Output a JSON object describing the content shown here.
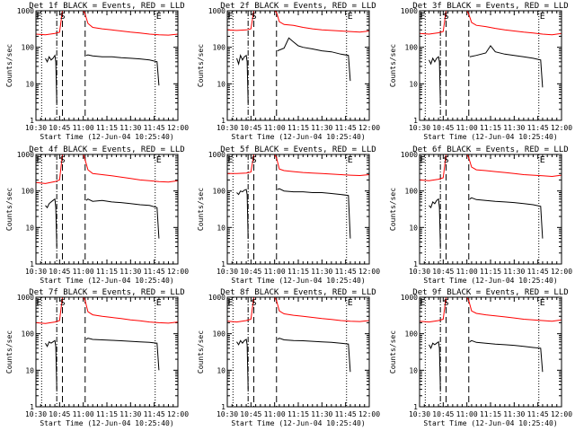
{
  "chart_data": {
    "type": "line",
    "layout": "3x3 grid",
    "time_ticks": [
      "10:30",
      "10:45",
      "11:00",
      "11:15",
      "11:30",
      "11:45",
      "12:00"
    ],
    "time_tick_hours": [
      10.5,
      10.75,
      11.0,
      11.25,
      11.5,
      11.75,
      12.0
    ],
    "xlim": [
      10.5,
      12.0
    ],
    "ylim": [
      1,
      1000
    ],
    "yscale": "log",
    "y_ticks": [
      "1",
      "10",
      "100",
      "1000"
    ],
    "y_tick_values": [
      1,
      10,
      100,
      1000
    ],
    "xlabel": "Start Time (12-Jun-04 10:25:40)",
    "ylabel": "Counts/sec",
    "marker_labels": {
      "start": "S",
      "end": "E"
    },
    "series_colors": {
      "events": "#000000",
      "lld": "#ff0000"
    },
    "panels": [
      {
        "title": "Det 1f BLACK = Events, RED = LLD",
        "markers": {
          "e1_hour": 10.56,
          "s_hour": 10.8,
          "e2_hour": 11.76
        },
        "dashdot_hour": 10.72,
        "dashed_hours": [
          10.78,
          11.02
        ],
        "events": {
          "x": [
            10.6,
            10.62,
            10.64,
            10.66,
            10.68,
            10.7,
            10.71,
            10.72,
            11.03,
            11.05,
            11.1,
            11.2,
            11.3,
            11.4,
            11.5,
            11.6,
            11.7,
            11.78,
            11.8
          ],
          "y": [
            50,
            40,
            55,
            45,
            50,
            60,
            40,
            3,
            60,
            62,
            58,
            55,
            55,
            52,
            50,
            48,
            45,
            40,
            9
          ]
        },
        "lld": {
          "x": [
            10.5,
            10.6,
            10.7,
            10.75,
            10.78,
            10.8,
            10.85,
            10.95,
            11.0,
            11.02,
            11.05,
            11.1,
            11.2,
            11.3,
            11.4,
            11.5,
            11.6,
            11.7,
            11.8,
            11.9,
            12.0
          ],
          "y": [
            230,
            220,
            240,
            260,
            1000,
            1000,
            1000,
            1000,
            1000,
            800,
            450,
            350,
            320,
            300,
            280,
            260,
            245,
            230,
            220,
            215,
            230
          ]
        }
      },
      {
        "title": "Det 2f BLACK = Events, RED = LLD",
        "markers": {
          "e1_hour": 10.56,
          "s_hour": 10.8,
          "e2_hour": 11.76
        },
        "dashdot_hour": 10.72,
        "dashed_hours": [
          10.78,
          11.02
        ],
        "events": {
          "x": [
            10.6,
            10.62,
            10.64,
            10.66,
            10.68,
            10.7,
            10.71,
            10.72,
            11.03,
            11.1,
            11.15,
            11.2,
            11.25,
            11.3,
            11.4,
            11.5,
            11.6,
            11.7,
            11.78,
            11.8
          ],
          "y": [
            50,
            35,
            60,
            45,
            55,
            60,
            40,
            3,
            80,
            95,
            180,
            140,
            110,
            100,
            90,
            80,
            75,
            65,
            60,
            12
          ]
        },
        "lld": {
          "x": [
            10.5,
            10.6,
            10.7,
            10.75,
            10.78,
            10.8,
            10.85,
            10.95,
            11.0,
            11.02,
            11.05,
            11.1,
            11.2,
            11.3,
            11.4,
            11.5,
            11.6,
            11.7,
            11.8,
            11.9,
            12.0
          ],
          "y": [
            300,
            290,
            300,
            320,
            1000,
            1000,
            1000,
            1000,
            1000,
            900,
            500,
            420,
            400,
            350,
            320,
            300,
            290,
            280,
            270,
            260,
            280
          ]
        }
      },
      {
        "title": "Det 3f BLACK = Events, RED = LLD",
        "markers": {
          "e1_hour": 10.56,
          "s_hour": 10.8,
          "e2_hour": 11.76
        },
        "dashdot_hour": 10.72,
        "dashed_hours": [
          10.78,
          11.02
        ],
        "events": {
          "x": [
            10.6,
            10.62,
            10.64,
            10.66,
            10.68,
            10.7,
            10.71,
            10.72,
            11.03,
            11.1,
            11.2,
            11.25,
            11.3,
            11.4,
            11.5,
            11.6,
            11.7,
            11.78,
            11.8
          ],
          "y": [
            45,
            35,
            50,
            40,
            50,
            55,
            40,
            3,
            55,
            60,
            70,
            110,
            75,
            65,
            60,
            55,
            50,
            45,
            8
          ]
        },
        "lld": {
          "x": [
            10.5,
            10.6,
            10.7,
            10.75,
            10.78,
            10.8,
            10.85,
            10.95,
            11.0,
            11.02,
            11.05,
            11.1,
            11.2,
            11.3,
            11.4,
            11.5,
            11.6,
            11.7,
            11.8,
            11.9,
            12.0
          ],
          "y": [
            240,
            230,
            250,
            270,
            1000,
            1000,
            1000,
            1000,
            1000,
            800,
            480,
            400,
            370,
            330,
            300,
            280,
            260,
            245,
            230,
            220,
            240
          ]
        }
      },
      {
        "title": "Det 4f BLACK = Events, RED = LLD",
        "markers": {
          "e1_hour": 10.56,
          "s_hour": 10.8,
          "e2_hour": 11.76
        },
        "dashdot_hour": 10.72,
        "dashed_hours": [
          10.78,
          11.02
        ],
        "events": {
          "x": [
            10.6,
            10.62,
            10.64,
            10.66,
            10.68,
            10.7,
            10.71,
            10.72,
            11.03,
            11.05,
            11.1,
            11.2,
            11.3,
            11.4,
            11.5,
            11.6,
            11.7,
            11.78,
            11.8
          ],
          "y": [
            40,
            35,
            45,
            50,
            55,
            60,
            35,
            3,
            55,
            60,
            52,
            55,
            50,
            48,
            45,
            42,
            40,
            35,
            5
          ]
        },
        "lld": {
          "x": [
            10.5,
            10.6,
            10.7,
            10.75,
            10.78,
            10.8,
            10.85,
            10.95,
            11.0,
            11.02,
            11.05,
            11.1,
            11.2,
            11.3,
            11.4,
            11.5,
            11.6,
            11.7,
            11.8,
            11.9,
            12.0
          ],
          "y": [
            170,
            160,
            180,
            200,
            1000,
            1000,
            1000,
            1000,
            1000,
            700,
            380,
            300,
            280,
            260,
            240,
            220,
            200,
            190,
            180,
            175,
            190
          ]
        }
      },
      {
        "title": "Det 5f BLACK = Events, RED = LLD",
        "markers": {
          "e1_hour": 10.56,
          "s_hour": 10.8,
          "e2_hour": 11.76
        },
        "dashdot_hour": 10.72,
        "dashed_hours": [
          10.78,
          11.02
        ],
        "events": {
          "x": [
            10.6,
            10.62,
            10.64,
            10.66,
            10.68,
            10.7,
            10.71,
            10.72,
            11.03,
            11.05,
            11.1,
            11.2,
            11.3,
            11.4,
            11.5,
            11.6,
            11.7,
            11.78,
            11.8
          ],
          "y": [
            90,
            80,
            100,
            95,
            105,
            110,
            80,
            5,
            110,
            115,
            100,
            95,
            95,
            90,
            90,
            85,
            80,
            75,
            5
          ]
        },
        "lld": {
          "x": [
            10.5,
            10.6,
            10.7,
            10.75,
            10.78,
            10.8,
            10.85,
            10.95,
            11.0,
            11.02,
            11.05,
            11.1,
            11.2,
            11.3,
            11.4,
            11.5,
            11.6,
            11.7,
            11.8,
            11.9,
            12.0
          ],
          "y": [
            300,
            300,
            310,
            330,
            1000,
            1000,
            1000,
            1000,
            1000,
            800,
            400,
            360,
            340,
            320,
            310,
            300,
            290,
            280,
            270,
            265,
            280
          ]
        }
      },
      {
        "title": "Det 6f BLACK = Events, RED = LLD",
        "markers": {
          "e1_hour": 10.56,
          "s_hour": 10.8,
          "e2_hour": 11.76
        },
        "dashdot_hour": 10.72,
        "dashed_hours": [
          10.78,
          11.02
        ],
        "events": {
          "x": [
            10.6,
            10.62,
            10.64,
            10.66,
            10.68,
            10.7,
            10.71,
            10.72,
            11.03,
            11.05,
            11.1,
            11.2,
            11.3,
            11.4,
            11.5,
            11.6,
            11.7,
            11.78,
            11.8
          ],
          "y": [
            40,
            35,
            50,
            45,
            55,
            60,
            35,
            3,
            60,
            65,
            58,
            55,
            52,
            50,
            48,
            45,
            42,
            38,
            5
          ]
        },
        "lld": {
          "x": [
            10.5,
            10.6,
            10.7,
            10.75,
            10.78,
            10.8,
            10.85,
            10.95,
            11.0,
            11.02,
            11.05,
            11.1,
            11.2,
            11.3,
            11.4,
            11.5,
            11.6,
            11.7,
            11.8,
            11.9,
            12.0
          ],
          "y": [
            200,
            190,
            210,
            230,
            1000,
            1000,
            1000,
            1000,
            1000,
            800,
            450,
            380,
            360,
            340,
            320,
            300,
            280,
            270,
            260,
            250,
            270
          ]
        }
      },
      {
        "title": "Det 7f BLACK = Events, RED = LLD",
        "markers": {
          "e1_hour": 10.56,
          "s_hour": 10.8,
          "e2_hour": 11.76
        },
        "dashdot_hour": 10.72,
        "dashed_hours": [
          10.78,
          11.02
        ],
        "events": {
          "x": [
            10.6,
            10.62,
            10.64,
            10.66,
            10.68,
            10.7,
            10.71,
            10.72,
            11.03,
            11.05,
            11.1,
            11.2,
            11.3,
            11.4,
            11.5,
            11.6,
            11.7,
            11.78,
            11.8
          ],
          "y": [
            55,
            45,
            60,
            55,
            60,
            65,
            45,
            3,
            70,
            75,
            70,
            68,
            66,
            64,
            62,
            60,
            58,
            55,
            10
          ]
        },
        "lld": {
          "x": [
            10.5,
            10.6,
            10.7,
            10.75,
            10.78,
            10.8,
            10.85,
            10.95,
            11.0,
            11.02,
            11.05,
            11.1,
            11.2,
            11.3,
            11.4,
            11.5,
            11.6,
            11.7,
            11.8,
            11.9,
            12.0
          ],
          "y": [
            200,
            190,
            210,
            230,
            1000,
            1000,
            1000,
            1000,
            1000,
            800,
            400,
            330,
            300,
            280,
            260,
            240,
            225,
            210,
            200,
            195,
            210
          ]
        }
      },
      {
        "title": "Det 8f BLACK = Events, RED = LLD",
        "markers": {
          "e1_hour": 10.56,
          "s_hour": 10.8,
          "e2_hour": 11.76
        },
        "dashdot_hour": 10.72,
        "dashed_hours": [
          10.78,
          11.02
        ],
        "events": {
          "x": [
            10.6,
            10.62,
            10.64,
            10.66,
            10.68,
            10.7,
            10.71,
            10.72,
            11.03,
            11.05,
            11.1,
            11.2,
            11.3,
            11.4,
            11.5,
            11.6,
            11.7,
            11.78,
            11.8
          ],
          "y": [
            60,
            50,
            65,
            55,
            65,
            70,
            50,
            3,
            70,
            75,
            68,
            65,
            64,
            62,
            60,
            58,
            55,
            52,
            9
          ]
        },
        "lld": {
          "x": [
            10.5,
            10.6,
            10.7,
            10.75,
            10.78,
            10.8,
            10.85,
            10.95,
            11.0,
            11.02,
            11.05,
            11.1,
            11.2,
            11.3,
            11.4,
            11.5,
            11.6,
            11.7,
            11.8,
            11.9,
            12.0
          ],
          "y": [
            220,
            210,
            230,
            250,
            1000,
            1000,
            1000,
            1000,
            1000,
            800,
            420,
            350,
            320,
            300,
            280,
            260,
            245,
            230,
            220,
            215,
            230
          ]
        }
      },
      {
        "title": "Det 9f BLACK = Events, RED = LLD",
        "markers": {
          "e1_hour": 10.56,
          "s_hour": 10.8,
          "e2_hour": 11.76
        },
        "dashdot_hour": 10.72,
        "dashed_hours": [
          10.78,
          11.02
        ],
        "events": {
          "x": [
            10.6,
            10.62,
            10.64,
            10.66,
            10.68,
            10.7,
            10.71,
            10.72,
            11.03,
            11.05,
            11.1,
            11.2,
            11.3,
            11.4,
            11.5,
            11.6,
            11.7,
            11.78,
            11.8
          ],
          "y": [
            50,
            40,
            55,
            50,
            55,
            60,
            40,
            3,
            60,
            65,
            58,
            55,
            52,
            50,
            48,
            45,
            42,
            40,
            9
          ]
        },
        "lld": {
          "x": [
            10.5,
            10.6,
            10.7,
            10.75,
            10.78,
            10.8,
            10.85,
            10.95,
            11.0,
            11.02,
            11.05,
            11.1,
            11.2,
            11.3,
            11.4,
            11.5,
            11.6,
            11.7,
            11.8,
            11.9,
            12.0
          ],
          "y": [
            220,
            210,
            230,
            250,
            1000,
            1000,
            1000,
            1000,
            1000,
            800,
            420,
            360,
            330,
            310,
            290,
            270,
            250,
            240,
            230,
            220,
            240
          ]
        }
      }
    ]
  }
}
